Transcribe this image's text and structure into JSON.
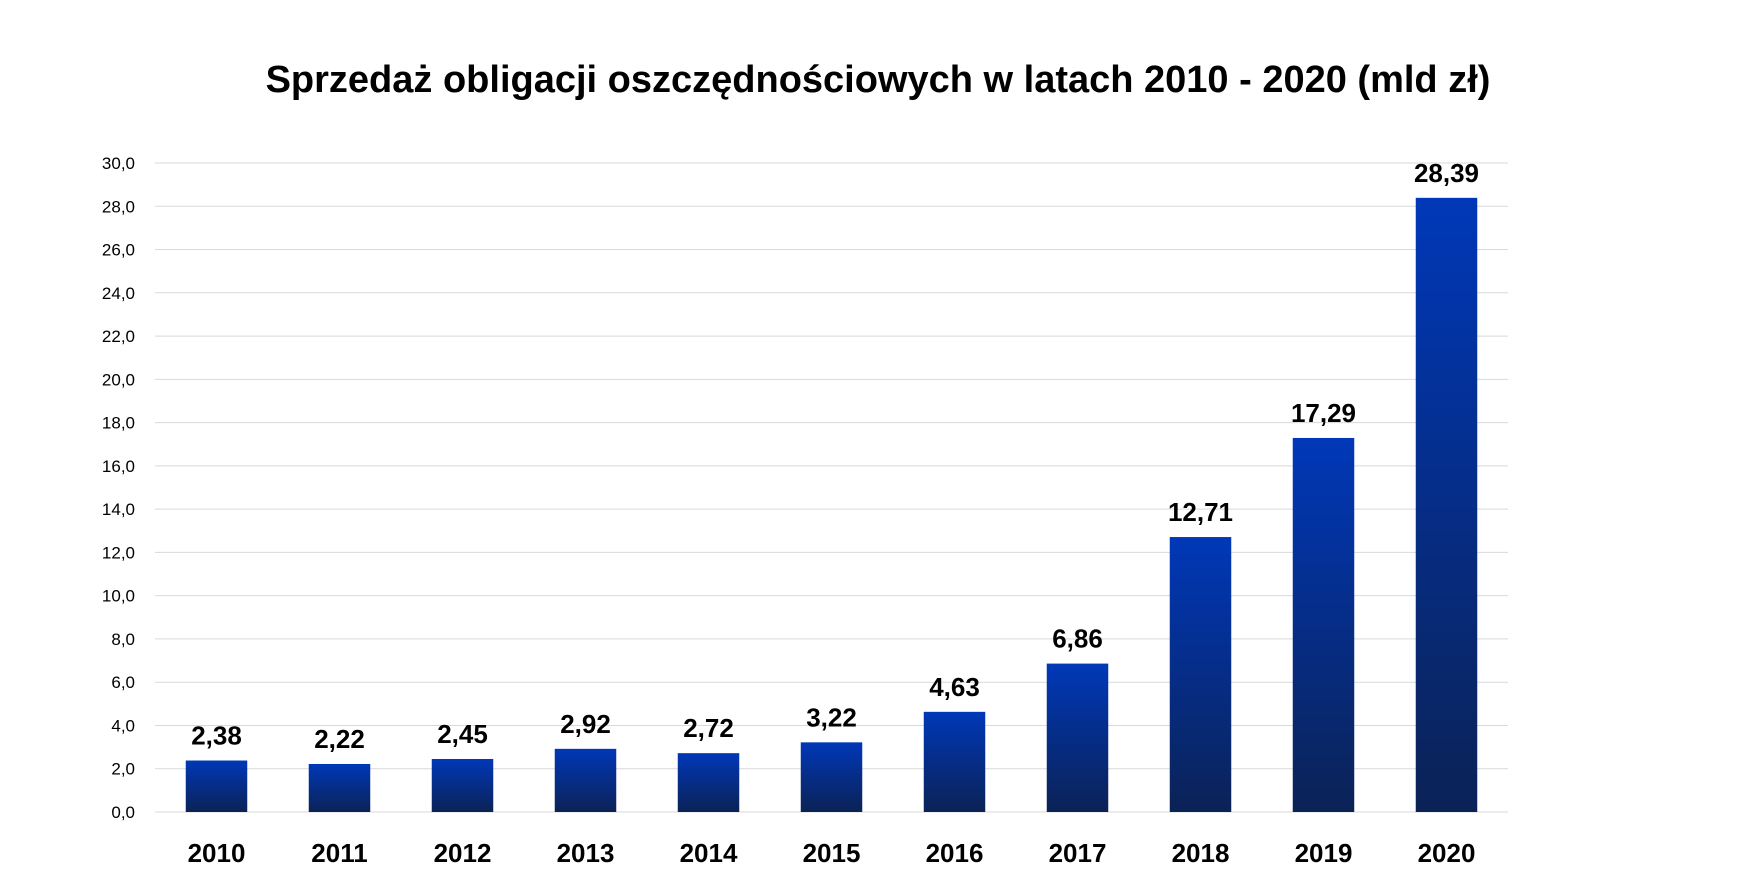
{
  "chart_data": {
    "type": "bar",
    "title": "Sprzedaż obligacji oszczędnościowych w latach 2010 - 2020 (mld zł)",
    "xlabel": "",
    "ylabel": "",
    "categories": [
      "2010",
      "2011",
      "2012",
      "2013",
      "2014",
      "2015",
      "2016",
      "2017",
      "2018",
      "2019",
      "2020"
    ],
    "values": [
      2.38,
      2.22,
      2.45,
      2.92,
      2.72,
      3.22,
      4.63,
      6.86,
      12.71,
      17.29,
      28.39
    ],
    "data_labels": [
      "2,38",
      "2,22",
      "2,45",
      "2,92",
      "2,72",
      "3,22",
      "4,63",
      "6,86",
      "12,71",
      "17,29",
      "28,39"
    ],
    "ylim": [
      0,
      30
    ],
    "y_ticks": [
      0,
      2,
      4,
      6,
      8,
      10,
      12,
      14,
      16,
      18,
      20,
      22,
      24,
      26,
      28,
      30
    ],
    "y_tick_labels": [
      "0,0",
      "2,0",
      "4,0",
      "6,0",
      "8,0",
      "10,0",
      "12,0",
      "14,0",
      "16,0",
      "18,0",
      "20,0",
      "22,0",
      "24,0",
      "26,0",
      "28,0",
      "30,0"
    ],
    "grid": true,
    "legend": "none",
    "colors": {
      "bar_top": "#0038B8",
      "bar_bottom": "#0B2256",
      "gridline": "#d9d9d9"
    }
  }
}
